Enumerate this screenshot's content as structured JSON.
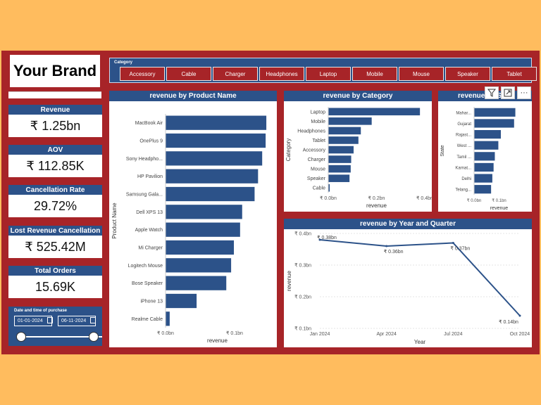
{
  "brand": "Your Brand",
  "slicer": {
    "title": "Category",
    "items": [
      "Accessory",
      "Cable",
      "Charger",
      "Headphones",
      "Laptop",
      "Mobile",
      "Mouse",
      "Speaker",
      "Tablet"
    ]
  },
  "kpis": [
    {
      "label": "Revenue",
      "value": "₹ 1.25bn"
    },
    {
      "label": "AOV",
      "value": "₹ 112.85K"
    },
    {
      "label": "Cancellation Rate",
      "value": "29.72%"
    },
    {
      "label": "Lost Revenue Cancellation",
      "value": "₹ 525.42M"
    },
    {
      "label": "Total Orders",
      "value": "15.69K"
    }
  ],
  "date_filter": {
    "title": "Date and time of purchase",
    "start": "01-01-2024",
    "end": "06-11-2024"
  },
  "colors": {
    "bar": "#2C5289",
    "panel": "#A72428",
    "background": "#FFBC5E"
  },
  "icons": [
    "filter-icon",
    "focus-mode-icon",
    "more-options-icon",
    "calendar-icon"
  ],
  "chart_data": [
    {
      "type": "bar",
      "orientation": "horizontal",
      "title": "revenue by Product Name",
      "xlabel": "revenue",
      "ylabel": "Product Name",
      "categories": [
        "MacBook Air",
        "OnePlus 9",
        "Sony Headpho...",
        "HP Pavilion",
        "Samsung Gala...",
        "Dell XPS 13",
        "Apple Watch",
        "Mi Charger",
        "Logitech Mouse",
        "Bose Speaker",
        "iPhone 13",
        "Realme Cable"
      ],
      "values": [
        0.146,
        0.145,
        0.14,
        0.134,
        0.129,
        0.111,
        0.108,
        0.099,
        0.095,
        0.088,
        0.045,
        0.006
      ],
      "xlim": [
        0,
        0.15
      ],
      "xticks": [
        {
          "v": 0,
          "label": "₹ 0.0bn"
        },
        {
          "v": 0.1,
          "label": "₹ 0.1bn"
        }
      ]
    },
    {
      "type": "bar",
      "orientation": "horizontal",
      "title": "revenue by Category",
      "xlabel": "revenue",
      "ylabel": "Category",
      "categories": [
        "Laptop",
        "Mobile",
        "Headphones",
        "Tablet",
        "Accessory",
        "Charger",
        "Mouse",
        "Speaker",
        "Cable"
      ],
      "values": [
        0.38,
        0.18,
        0.135,
        0.125,
        0.105,
        0.095,
        0.093,
        0.088,
        0.006
      ],
      "xlim": [
        0,
        0.4
      ],
      "xticks": [
        {
          "v": 0,
          "label": "₹ 0.0bn"
        },
        {
          "v": 0.2,
          "label": "₹ 0.2bn"
        },
        {
          "v": 0.4,
          "label": "₹ 0.4bn"
        }
      ]
    },
    {
      "type": "bar",
      "orientation": "horizontal",
      "title": "revenue by State",
      "xlabel": "revenue",
      "ylabel": "State",
      "categories": [
        "Mahar...",
        "Gujarat",
        "Rajast...",
        "West ...",
        "Tamil ...",
        "Karnat...",
        "Delhi",
        "Telang..."
      ],
      "values": [
        0.165,
        0.16,
        0.107,
        0.097,
        0.083,
        0.078,
        0.073,
        0.068
      ],
      "xlim": [
        0,
        0.2
      ],
      "xticks": [
        {
          "v": 0,
          "label": "₹ 0.0bn"
        },
        {
          "v": 0.1,
          "label": "₹ 0.1bn"
        }
      ]
    },
    {
      "type": "line",
      "title": "revenue by Year and Quarter",
      "xlabel": "Year",
      "ylabel": "revenue",
      "x": [
        "Jan 2024",
        "Apr 2024",
        "Jul 2024",
        "Oct 2024"
      ],
      "values": [
        0.38,
        0.36,
        0.37,
        0.14
      ],
      "data_labels": [
        "₹ 0.38bn",
        "₹ 0.36bn",
        "₹ 0.37bn",
        "₹ 0.14bn"
      ],
      "ylim": [
        0.1,
        0.4
      ],
      "yticks": [
        {
          "v": 0.4,
          "label": "₹ 0.4bn"
        },
        {
          "v": 0.3,
          "label": "₹ 0.3bn"
        },
        {
          "v": 0.2,
          "label": "₹ 0.2bn"
        },
        {
          "v": 0.1,
          "label": "₹ 0.1bn"
        }
      ]
    }
  ]
}
